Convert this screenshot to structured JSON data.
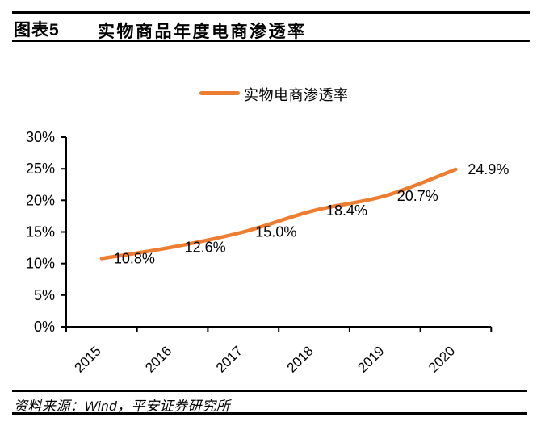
{
  "header": {
    "chart_number": "图表5",
    "title": "实物商品年度电商渗透率"
  },
  "legend": {
    "label": "实物电商渗透率",
    "color": "#ED7D31"
  },
  "chart_data": {
    "type": "line",
    "title": "实物商品年度电商渗透率",
    "categories": [
      "2015",
      "2016",
      "2017",
      "2018",
      "2019",
      "2020"
    ],
    "series": [
      {
        "name": "实物电商渗透率",
        "color": "#ED7D31",
        "values": [
          10.8,
          12.6,
          15.0,
          18.4,
          20.7,
          24.9
        ]
      }
    ],
    "data_labels": [
      "10.8%",
      "12.6%",
      "15.0%",
      "18.4%",
      "20.7%",
      "24.9%"
    ],
    "y_ticks": [
      "0%",
      "5%",
      "10%",
      "15%",
      "20%",
      "25%",
      "30%"
    ],
    "ylim": [
      0,
      30
    ],
    "xlabel": "",
    "ylabel": "",
    "grid": false,
    "legend_position": "top",
    "axis_color": "#000000",
    "label_color": "#000000"
  },
  "footer": {
    "source": "资料来源：Wind，平安证券研究所"
  }
}
